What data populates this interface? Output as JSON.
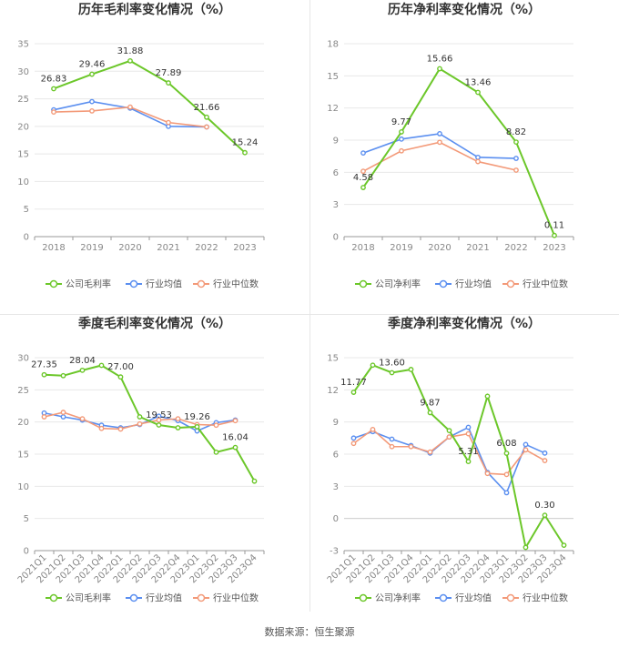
{
  "footer": "数据来源：恒生聚源",
  "colors": {
    "company": "#6cc72a",
    "avg": "#5b8ff0",
    "median": "#f39a79",
    "grid": "#e8e8e8",
    "axis": "#999999"
  },
  "chart_data": [
    {
      "type": "line",
      "title": "历年毛利率变化情况（%）",
      "categories": [
        "2018",
        "2019",
        "2020",
        "2021",
        "2022",
        "2023"
      ],
      "ylim": [
        0,
        35
      ],
      "yticks": [
        0,
        5,
        10,
        15,
        20,
        25,
        30,
        35
      ],
      "rotate_x": false,
      "legend_position": "bottom",
      "series": [
        {
          "name": "公司毛利率",
          "key": "company",
          "values": [
            26.83,
            29.46,
            31.88,
            27.89,
            21.66,
            15.24
          ],
          "labels": [
            "26.83",
            "29.46",
            "31.88",
            "27.89",
            "21.66",
            "15.24"
          ]
        },
        {
          "name": "行业均值",
          "key": "avg",
          "values": [
            23.0,
            24.5,
            23.3,
            20.0,
            19.9,
            null
          ]
        },
        {
          "name": "行业中位数",
          "key": "median",
          "values": [
            22.6,
            22.8,
            23.5,
            20.7,
            19.9,
            null
          ]
        }
      ]
    },
    {
      "type": "line",
      "title": "历年净利率变化情况（%）",
      "categories": [
        "2018",
        "2019",
        "2020",
        "2021",
        "2022",
        "2023"
      ],
      "ylim": [
        0,
        18
      ],
      "yticks": [
        0,
        3,
        6,
        9,
        12,
        15,
        18
      ],
      "rotate_x": false,
      "legend_position": "bottom",
      "series": [
        {
          "name": "公司净利率",
          "key": "company",
          "values": [
            4.58,
            9.77,
            15.66,
            13.46,
            8.82,
            0.11
          ],
          "labels": [
            "4.58",
            "9.77",
            "15.66",
            "13.46",
            "8.82",
            "0.11"
          ]
        },
        {
          "name": "行业均值",
          "key": "avg",
          "values": [
            7.8,
            9.1,
            9.6,
            7.4,
            7.3,
            null
          ]
        },
        {
          "name": "行业中位数",
          "key": "median",
          "values": [
            6.1,
            8.0,
            8.8,
            7.0,
            6.2,
            null
          ]
        }
      ]
    },
    {
      "type": "line",
      "title": "季度毛利率变化情况（%）",
      "categories": [
        "2021Q1",
        "2021Q2",
        "2021Q3",
        "2021Q4",
        "2022Q1",
        "2022Q2",
        "2022Q3",
        "2022Q4",
        "2023Q1",
        "2023Q2",
        "2023Q3",
        "2023Q4"
      ],
      "ylim": [
        0,
        30
      ],
      "yticks": [
        0,
        5,
        10,
        15,
        20,
        25,
        30
      ],
      "rotate_x": true,
      "legend_position": "bottom",
      "series": [
        {
          "name": "公司毛利率",
          "key": "company",
          "values": [
            27.35,
            27.2,
            28.04,
            28.8,
            27.0,
            20.8,
            19.53,
            19.1,
            19.26,
            15.3,
            16.04,
            10.8
          ],
          "labels": [
            "27.35",
            "",
            "28.04",
            "",
            "27.00",
            "",
            "19.53",
            "",
            "19.26",
            "",
            "16.04",
            ""
          ]
        },
        {
          "name": "行业均值",
          "key": "avg",
          "values": [
            21.4,
            20.8,
            20.3,
            19.5,
            19.1,
            19.6,
            20.9,
            20.2,
            18.6,
            19.9,
            20.3,
            null
          ]
        },
        {
          "name": "行业中位数",
          "key": "median",
          "values": [
            20.8,
            21.5,
            20.5,
            19.0,
            18.9,
            19.7,
            20.3,
            20.5,
            19.6,
            19.5,
            20.2,
            null
          ]
        }
      ]
    },
    {
      "type": "line",
      "title": "季度净利率变化情况（%）",
      "categories": [
        "2021Q1",
        "2021Q2",
        "2021Q3",
        "2021Q4",
        "2022Q1",
        "2022Q2",
        "2022Q3",
        "2022Q4",
        "2023Q1",
        "2023Q2",
        "2023Q3",
        "2023Q4"
      ],
      "ylim": [
        -3,
        15
      ],
      "yticks": [
        -3,
        0,
        3,
        6,
        9,
        12,
        15
      ],
      "rotate_x": true,
      "legend_position": "bottom",
      "series": [
        {
          "name": "公司净利率",
          "key": "company",
          "values": [
            11.77,
            14.3,
            13.6,
            13.9,
            9.87,
            8.2,
            5.31,
            11.4,
            6.08,
            -2.7,
            0.3,
            -2.5
          ],
          "labels": [
            "11.77",
            "",
            "13.60",
            "",
            "9.87",
            "",
            "5.31",
            "",
            "6.08",
            "",
            "0.30",
            ""
          ]
        },
        {
          "name": "行业均值",
          "key": "avg",
          "values": [
            7.5,
            8.1,
            7.4,
            6.8,
            6.1,
            7.6,
            8.5,
            4.3,
            2.4,
            6.9,
            6.1,
            null
          ]
        },
        {
          "name": "行业中位数",
          "key": "median",
          "values": [
            7.0,
            8.3,
            6.7,
            6.7,
            6.2,
            7.6,
            7.9,
            4.2,
            4.1,
            6.4,
            5.4,
            null
          ]
        }
      ]
    }
  ]
}
